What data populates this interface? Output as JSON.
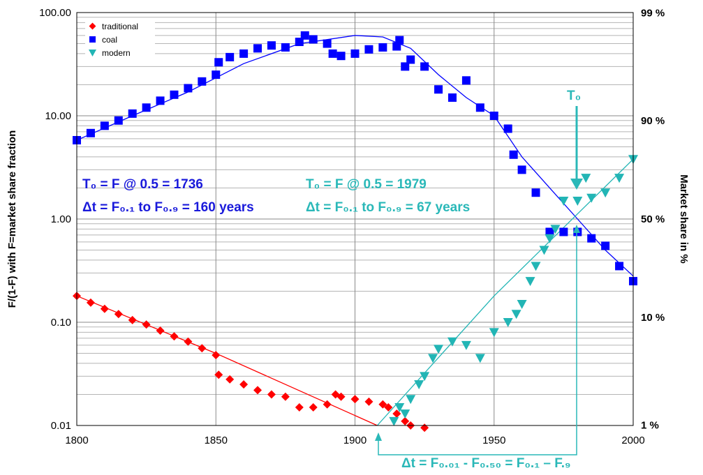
{
  "chart_data": {
    "type": "scatter",
    "title": "",
    "xlabel": "",
    "ylabel": "F/(1-F) with F=market share fraction",
    "y2label": "Market share in %",
    "xlim": [
      1800,
      2000
    ],
    "ylim": [
      0.01,
      100
    ],
    "yscale": "log",
    "grid": true,
    "legend_position": "top-left",
    "x_ticks": [
      "1800",
      "1850",
      "1900",
      "1950",
      "2000"
    ],
    "y_ticks": [
      "0.01",
      "0.10",
      "1.00",
      "10.00",
      "100.00"
    ],
    "y2_ticks": [
      "1 %",
      "10 %",
      "50 %",
      "90 %",
      "99 %"
    ],
    "series": [
      {
        "name": "traditional",
        "color": "#ff0000",
        "marker": "diamond",
        "x": [
          1800,
          1805,
          1810,
          1815,
          1820,
          1825,
          1830,
          1835,
          1840,
          1845,
          1850,
          1851,
          1855,
          1860,
          1865,
          1870,
          1875,
          1880,
          1885,
          1890,
          1893,
          1895,
          1900,
          1905,
          1910,
          1912,
          1915,
          1918,
          1920,
          1925
        ],
        "y": [
          0.18,
          0.155,
          0.135,
          0.12,
          0.105,
          0.095,
          0.083,
          0.073,
          0.065,
          0.056,
          0.048,
          0.031,
          0.028,
          0.025,
          0.022,
          0.02,
          0.019,
          0.015,
          0.015,
          0.016,
          0.02,
          0.019,
          0.018,
          0.017,
          0.016,
          0.015,
          0.013,
          0.011,
          0.01,
          0.0095
        ]
      },
      {
        "name": "coal",
        "color": "#0000ff",
        "marker": "square",
        "x": [
          1800,
          1805,
          1810,
          1815,
          1820,
          1825,
          1830,
          1835,
          1840,
          1845,
          1850,
          1851,
          1855,
          1860,
          1865,
          1870,
          1875,
          1880,
          1882,
          1885,
          1890,
          1892,
          1895,
          1900,
          1905,
          1910,
          1915,
          1916,
          1918,
          1920,
          1925,
          1930,
          1935,
          1940,
          1945,
          1950,
          1955,
          1957,
          1960,
          1965,
          1970,
          1975,
          1980,
          1985,
          1990,
          1995,
          2000
        ],
        "y": [
          5.8,
          6.8,
          8.0,
          9.0,
          10.5,
          12.0,
          14.0,
          16.0,
          18.5,
          21.5,
          25.0,
          33.0,
          37.0,
          40.0,
          45.0,
          48.0,
          46.0,
          52.0,
          60.0,
          55.0,
          50.0,
          40.0,
          38.0,
          40.0,
          44.0,
          46.0,
          47.0,
          54.0,
          30.0,
          35.0,
          30.0,
          18.0,
          15.0,
          22.0,
          12.0,
          10.0,
          7.5,
          4.2,
          3.0,
          1.8,
          0.75,
          0.75,
          0.75,
          0.65,
          0.55,
          0.35,
          0.25
        ]
      },
      {
        "name": "modern",
        "color": "#22b5b5",
        "marker": "triangle-down",
        "x": [
          1914,
          1916,
          1918,
          1920,
          1923,
          1925,
          1928,
          1930,
          1935,
          1940,
          1945,
          1950,
          1955,
          1958,
          1960,
          1963,
          1965,
          1968,
          1970,
          1972,
          1975,
          1980,
          1983,
          1985,
          1990,
          1995,
          2000
        ],
        "y": [
          0.011,
          0.015,
          0.013,
          0.018,
          0.025,
          0.03,
          0.045,
          0.055,
          0.065,
          0.06,
          0.045,
          0.08,
          0.1,
          0.12,
          0.15,
          0.25,
          0.35,
          0.5,
          0.65,
          0.8,
          1.5,
          1.5,
          2.5,
          1.6,
          1.8,
          2.5,
          3.8
        ]
      }
    ],
    "fits": [
      {
        "series": "traditional",
        "color": "#ff0000",
        "x": [
          1800,
          1850,
          1908
        ],
        "y": [
          0.18,
          0.05,
          0.01
        ]
      },
      {
        "series": "coal",
        "color": "#0000ff",
        "x": [
          1800,
          1820,
          1840,
          1860,
          1880,
          1900,
          1910,
          1920,
          1930,
          1940,
          1950,
          1960,
          1970,
          1980,
          1990,
          2000
        ],
        "y": [
          5.8,
          10.0,
          17.0,
          32.0,
          50.0,
          60.0,
          58.0,
          45.0,
          25.0,
          15.0,
          10.0,
          4.0,
          2.0,
          1.0,
          0.5,
          0.28
        ]
      },
      {
        "series": "modern",
        "color": "#22b5b5",
        "x": [
          1908,
          1950,
          2000
        ],
        "y": [
          0.01,
          0.18,
          3.8
        ]
      }
    ],
    "annotations": {
      "coal_t0": "T₀ = F @ 0.5   = 1736",
      "coal_dt": "Δt = F₀.₁ to F₀.₉ = 160 years",
      "modern_t0": "T₀ = F @ 0.5   = 1979",
      "modern_dt": "Δt = F₀.₁ to F₀.₉ =  67 years",
      "t0_marker": "T₀",
      "bottom_dt": "Δt = F₀.₀₁ - F₀.₅₀ = F₀.₁ – F.₉"
    },
    "annotation_colors": {
      "coal": "#1a1adb",
      "modern": "#2ab8b8"
    }
  }
}
